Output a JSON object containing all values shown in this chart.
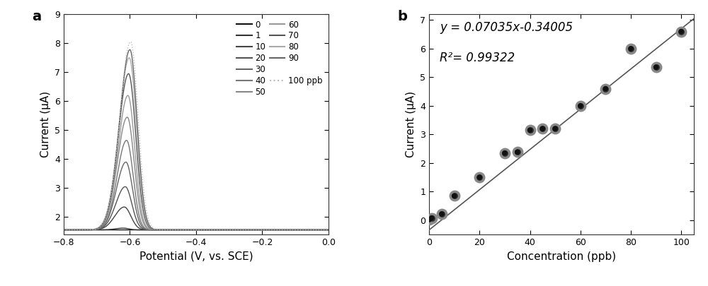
{
  "panel_a": {
    "xlabel": "Potential (V, vs. SCE)",
    "ylabel": "Current (μA)",
    "xlim": [
      -0.8,
      0.0
    ],
    "ylim": [
      1.4,
      9.0
    ],
    "yticks": [
      2,
      3,
      4,
      5,
      6,
      7,
      8,
      9
    ],
    "xticks": [
      -0.8,
      -0.6,
      -0.4,
      -0.2,
      0.0
    ],
    "label": "a",
    "concentrations": [
      0,
      1,
      10,
      20,
      30,
      40,
      50,
      60,
      70,
      80,
      90,
      100
    ],
    "peak_heights": [
      1.56,
      1.62,
      2.35,
      3.05,
      3.9,
      4.65,
      5.45,
      6.2,
      6.95,
      7.5,
      7.78,
      8.05
    ],
    "peak_positions": [
      -0.62,
      -0.62,
      -0.617,
      -0.614,
      -0.612,
      -0.61,
      -0.608,
      -0.606,
      -0.604,
      -0.602,
      -0.6,
      -0.598
    ],
    "peak_widths": [
      0.001,
      0.018,
      0.022,
      0.022,
      0.022,
      0.022,
      0.023,
      0.023,
      0.024,
      0.024,
      0.024,
      0.025
    ],
    "baseline": 1.56,
    "peak_colors": [
      "#111111",
      "#333333",
      "#444444",
      "#555555",
      "#666666",
      "#777777",
      "#888888",
      "#999999",
      "#555555",
      "#aaaaaa",
      "#666666",
      "#bbbbbb"
    ],
    "peak_styles": [
      "solid",
      "solid",
      "solid",
      "solid",
      "solid",
      "solid",
      "solid",
      "solid",
      "solid",
      "solid",
      "solid",
      "dotted"
    ],
    "legend_col1": [
      "0",
      "10",
      "30",
      "50",
      "70"
    ],
    "legend_col2": [
      "1",
      "20",
      "40",
      "60",
      "80"
    ],
    "legend_col1_colors": [
      "#111111",
      "#444444",
      "#666666",
      "#888888",
      "#555555"
    ],
    "legend_col2_colors": [
      "#333333",
      "#555555",
      "#777777",
      "#999999",
      "#aaaaaa"
    ],
    "legend_90_color": "#666666",
    "legend_100_color": "#bbbbbb"
  },
  "panel_b": {
    "xlabel": "Concentration (ppb)",
    "ylabel": "Current (μA)",
    "xlim": [
      0,
      105
    ],
    "ylim": [
      -0.5,
      7.2
    ],
    "yticks": [
      0,
      1,
      2,
      3,
      4,
      5,
      6,
      7
    ],
    "xticks": [
      0,
      20,
      40,
      60,
      80,
      100
    ],
    "label": "b",
    "equation": "y = 0.07035x-0.34005",
    "r_squared": "R²= 0.99322",
    "slope": 0.07035,
    "intercept": -0.34005,
    "data_x": [
      0,
      1,
      5,
      10,
      20,
      30,
      35,
      40,
      45,
      50,
      60,
      70,
      80,
      90,
      100
    ],
    "data_y": [
      0.02,
      0.08,
      0.22,
      0.85,
      1.5,
      2.35,
      2.38,
      3.15,
      3.2,
      3.2,
      4.0,
      4.6,
      6.0,
      5.35,
      6.6
    ]
  },
  "background_color": "#ffffff",
  "figure_width": 10.0,
  "figure_height": 4.05
}
